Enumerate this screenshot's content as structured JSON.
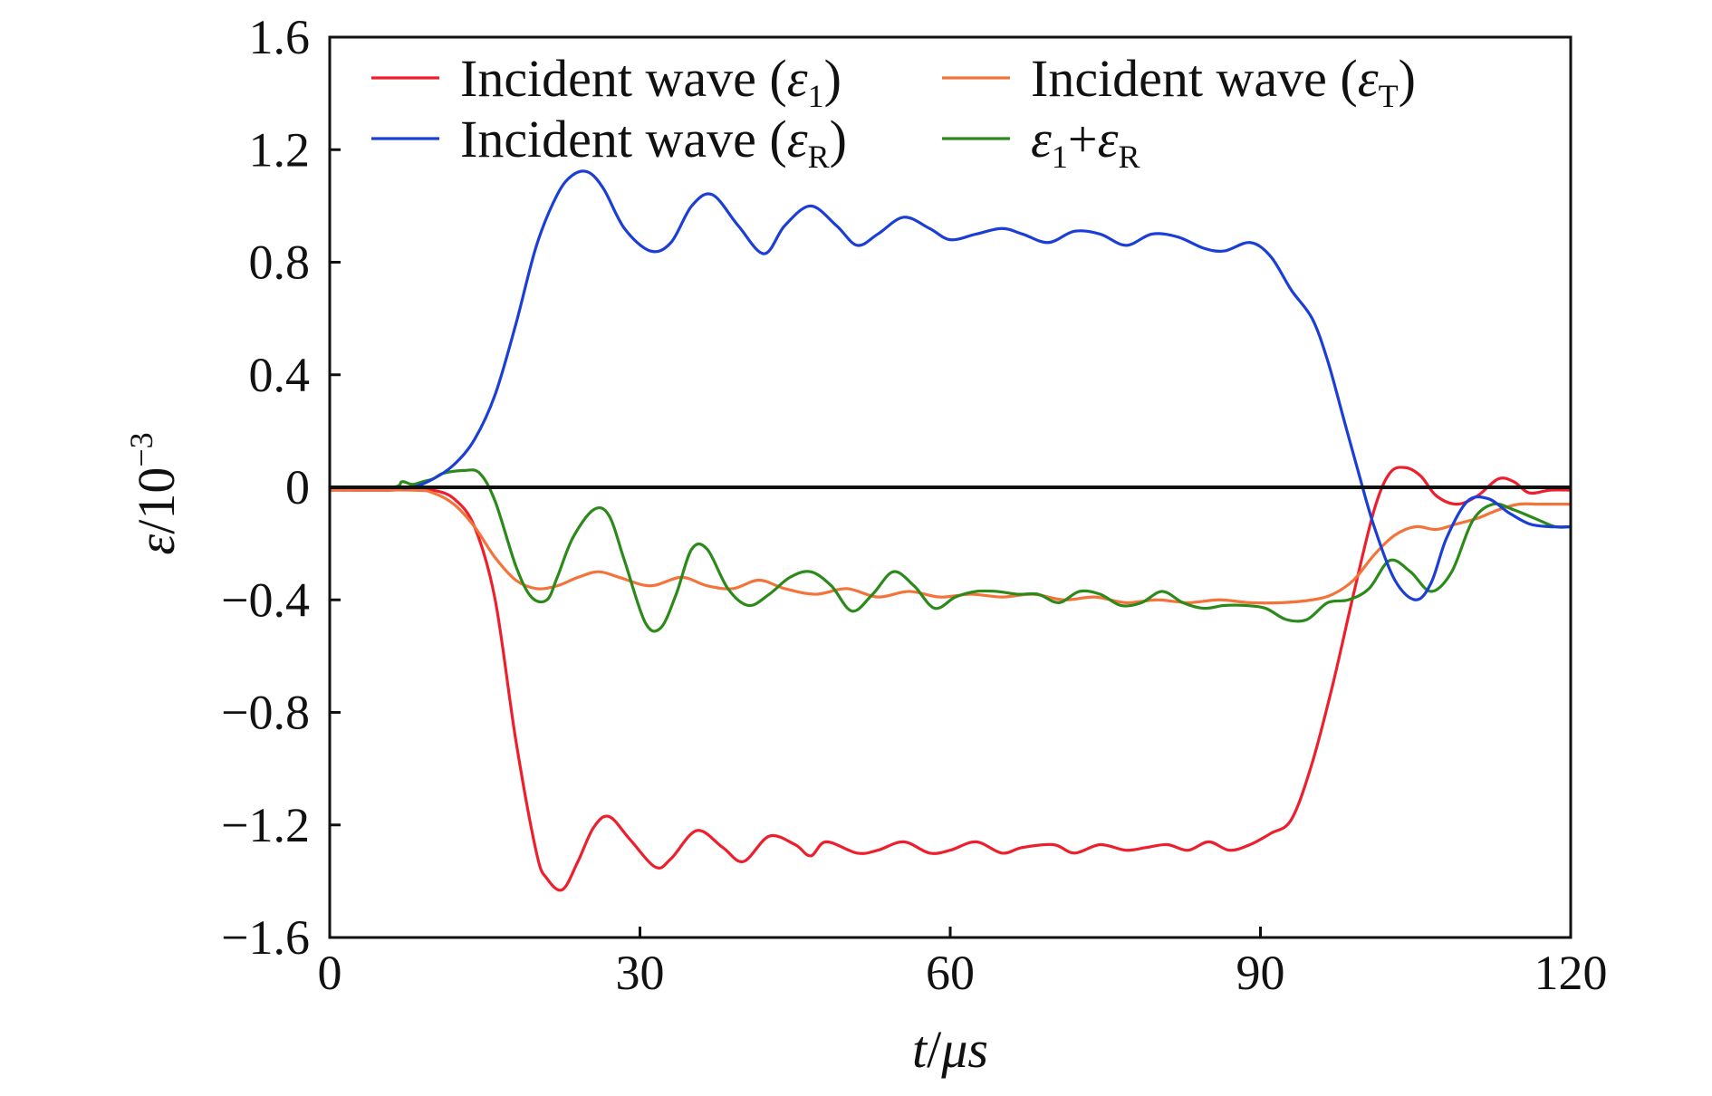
{
  "chart_data": {
    "type": "line",
    "xlabel": {
      "var": "t",
      "sep": "/",
      "unit": "μs"
    },
    "ylabel": {
      "var": "ε",
      "sep": "/",
      "base": "10",
      "exp": "−3"
    },
    "xlim": [
      0,
      120
    ],
    "ylim": [
      -1.6,
      1.6
    ],
    "x_ticks": [
      0,
      30,
      60,
      90,
      120
    ],
    "x_tick_labels": [
      "0",
      "30",
      "60",
      "90",
      "120"
    ],
    "y_ticks": [
      -1.6,
      -1.2,
      -0.8,
      -0.4,
      0,
      0.4,
      0.8,
      1.2,
      1.6
    ],
    "y_tick_labels": [
      "−1.6",
      "−1.2",
      "−0.8",
      "−0.4",
      "0",
      "0.4",
      "0.8",
      "1.2",
      "1.6"
    ],
    "grid": false,
    "legend_position": "top",
    "zero_line": true,
    "series": [
      {
        "name": "Incident wave (ε1)",
        "color": "#ee1f2d",
        "x": [
          0,
          6,
          8,
          10,
          12,
          14,
          16,
          18,
          20,
          21,
          22.5,
          24,
          25.5,
          27,
          29,
          31.5,
          33,
          35.5,
          38,
          40,
          42.5,
          45,
          46.5,
          48,
          51,
          53,
          55.5,
          58,
          60,
          62.5,
          65,
          67,
          70,
          72,
          74.5,
          77,
          79,
          81,
          83,
          85,
          87,
          89,
          91,
          93,
          95,
          97,
          99,
          101,
          102.5,
          104,
          105.5,
          107,
          109,
          111,
          113,
          114.5,
          116,
          118,
          120
        ],
        "y": [
          -0.01,
          -0.01,
          0,
          -0.01,
          -0.04,
          -0.14,
          -0.4,
          -0.9,
          -1.3,
          -1.39,
          -1.43,
          -1.33,
          -1.21,
          -1.17,
          -1.25,
          -1.35,
          -1.32,
          -1.22,
          -1.28,
          -1.33,
          -1.24,
          -1.27,
          -1.31,
          -1.26,
          -1.3,
          -1.29,
          -1.26,
          -1.3,
          -1.29,
          -1.26,
          -1.3,
          -1.28,
          -1.27,
          -1.3,
          -1.27,
          -1.29,
          -1.28,
          -1.27,
          -1.29,
          -1.26,
          -1.29,
          -1.27,
          -1.23,
          -1.18,
          -0.98,
          -0.7,
          -0.38,
          -0.08,
          0.05,
          0.07,
          0.04,
          -0.03,
          -0.06,
          -0.03,
          0.03,
          0.02,
          -0.02,
          -0.01,
          -0.01
        ]
      },
      {
        "name": "Incident wave (εR)",
        "color": "#1b3fd6",
        "x": [
          0,
          6,
          8,
          10,
          12,
          14,
          16,
          18,
          20,
          22,
          23.5,
          25,
          26.5,
          28.5,
          31,
          33,
          35,
          37,
          39.5,
          42,
          44,
          46.5,
          49,
          51,
          53,
          55.5,
          58,
          60,
          62.5,
          65,
          67,
          69.5,
          72,
          74.5,
          77,
          79.5,
          82,
          84.5,
          86.5,
          89,
          91,
          93,
          95,
          96.5,
          98,
          99.5,
          101,
          103,
          105,
          106.5,
          108,
          110,
          112,
          114,
          116,
          118,
          120
        ],
        "y": [
          0,
          0,
          0,
          0.03,
          0.08,
          0.17,
          0.33,
          0.58,
          0.86,
          1.04,
          1.11,
          1.12,
          1.06,
          0.92,
          0.84,
          0.87,
          1.0,
          1.04,
          0.93,
          0.83,
          0.93,
          1.0,
          0.93,
          0.86,
          0.9,
          0.96,
          0.92,
          0.88,
          0.9,
          0.92,
          0.9,
          0.87,
          0.91,
          0.9,
          0.86,
          0.9,
          0.89,
          0.85,
          0.84,
          0.87,
          0.82,
          0.7,
          0.6,
          0.45,
          0.25,
          0.05,
          -0.14,
          -0.33,
          -0.4,
          -0.34,
          -0.18,
          -0.05,
          -0.04,
          -0.09,
          -0.13,
          -0.14,
          -0.14
        ]
      },
      {
        "name": "Incident wave (εT)",
        "color": "#f4733a",
        "x": [
          0,
          8,
          10,
          12,
          14,
          16,
          18,
          20,
          22,
          24,
          26,
          28,
          31,
          34,
          36.5,
          39,
          41.5,
          44,
          47,
          50,
          53,
          56,
          59,
          62,
          65,
          68,
          71,
          74,
          77,
          80,
          83,
          86,
          89,
          92,
          95,
          97,
          99,
          101,
          103,
          105,
          107,
          109,
          111,
          113,
          115,
          117,
          120
        ],
        "y": [
          -0.01,
          -0.01,
          -0.02,
          -0.06,
          -0.14,
          -0.25,
          -0.33,
          -0.36,
          -0.35,
          -0.32,
          -0.3,
          -0.32,
          -0.35,
          -0.32,
          -0.35,
          -0.36,
          -0.33,
          -0.36,
          -0.38,
          -0.36,
          -0.39,
          -0.37,
          -0.39,
          -0.38,
          -0.39,
          -0.38,
          -0.4,
          -0.39,
          -0.41,
          -0.4,
          -0.41,
          -0.4,
          -0.41,
          -0.41,
          -0.4,
          -0.38,
          -0.33,
          -0.24,
          -0.17,
          -0.14,
          -0.15,
          -0.13,
          -0.11,
          -0.08,
          -0.06,
          -0.06,
          -0.06
        ]
      },
      {
        "name": "ε1+εR",
        "color": "#2b8a1a",
        "x": [
          0,
          6,
          7,
          8,
          9,
          10,
          11,
          13,
          14.5,
          16,
          18,
          19.5,
          21,
          22,
          23.5,
          25.5,
          27,
          28.5,
          30.5,
          32,
          33.5,
          35,
          36.5,
          38.5,
          40.5,
          42.5,
          44.5,
          46.5,
          48.5,
          50.5,
          52.5,
          54.5,
          56.5,
          58.5,
          60.5,
          62.5,
          64.5,
          66.5,
          68.5,
          70.5,
          72.5,
          74.5,
          76.5,
          78.5,
          80.5,
          82.5,
          84.5,
          86.5,
          88.5,
          90.5,
          92.5,
          94.5,
          96.5,
          98.5,
          100.5,
          102.5,
          104.5,
          106.5,
          108.5,
          110.5,
          112.5,
          114.5,
          116.5,
          118.5,
          120
        ],
        "y": [
          0,
          0,
          0.02,
          0.01,
          0.02,
          0.03,
          0.05,
          0.06,
          0.05,
          -0.05,
          -0.28,
          -0.39,
          -0.4,
          -0.32,
          -0.18,
          -0.08,
          -0.1,
          -0.26,
          -0.48,
          -0.5,
          -0.38,
          -0.22,
          -0.22,
          -0.36,
          -0.42,
          -0.38,
          -0.32,
          -0.3,
          -0.35,
          -0.44,
          -0.38,
          -0.3,
          -0.35,
          -0.43,
          -0.39,
          -0.37,
          -0.37,
          -0.38,
          -0.38,
          -0.41,
          -0.37,
          -0.38,
          -0.42,
          -0.41,
          -0.37,
          -0.41,
          -0.43,
          -0.42,
          -0.42,
          -0.43,
          -0.47,
          -0.47,
          -0.41,
          -0.4,
          -0.36,
          -0.26,
          -0.3,
          -0.37,
          -0.3,
          -0.12,
          -0.06,
          -0.08,
          -0.11,
          -0.14,
          -0.14
        ]
      }
    ],
    "zero_line_color": "#111111"
  },
  "legend": {
    "items": [
      {
        "label": "Incident wave (",
        "var": "ε",
        "sub": "1",
        "close": ")",
        "color": "#ee1f2d"
      },
      {
        "label": "Incident wave (",
        "var": "ε",
        "sub": "T",
        "close": ")",
        "color": "#f4733a"
      },
      {
        "label": "Incident wave (",
        "var": "ε",
        "sub": "R",
        "close": ")",
        "color": "#1b3fd6"
      },
      {
        "label": "",
        "var": "ε",
        "sub": "1",
        "plus": "+",
        "var2": "ε",
        "sub2": "R",
        "color": "#2b8a1a"
      }
    ]
  }
}
